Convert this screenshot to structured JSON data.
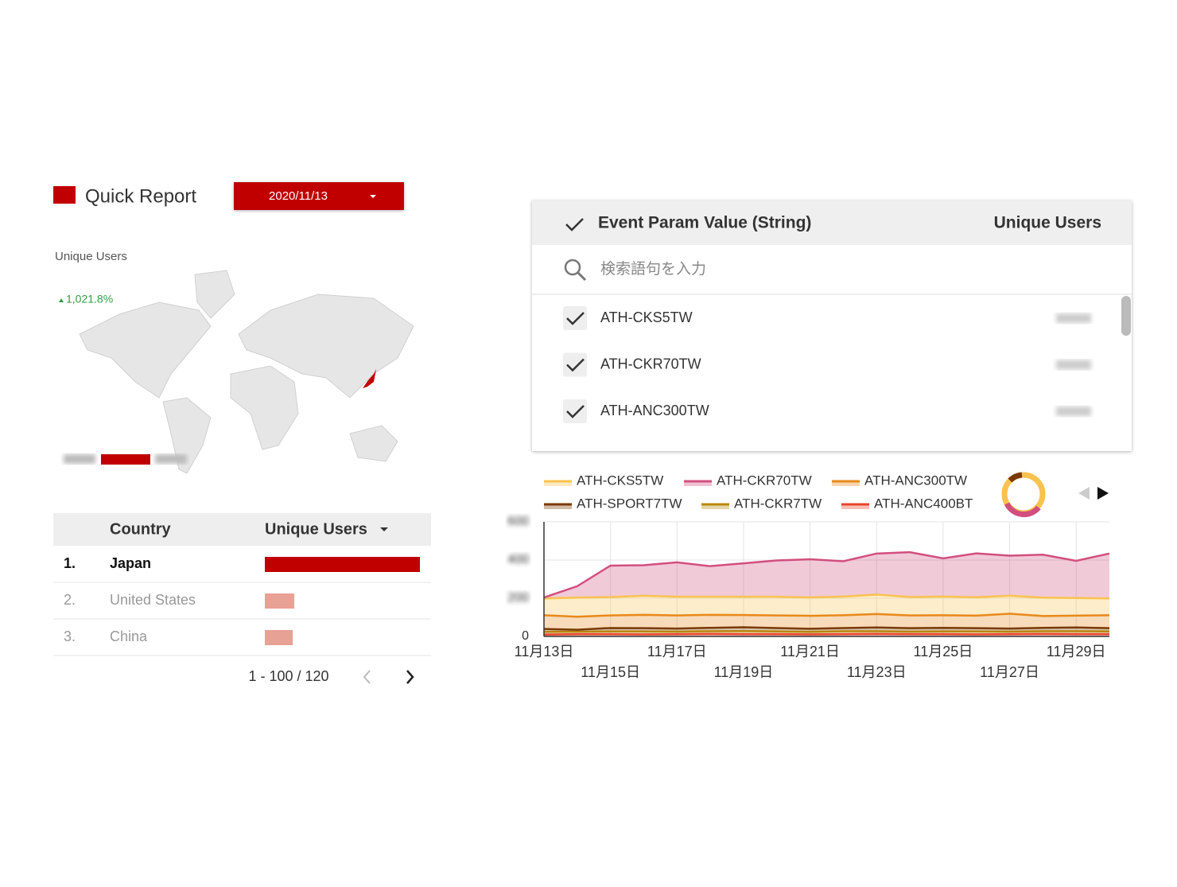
{
  "header": {
    "title": "Quick Report",
    "date": "2020/11/13"
  },
  "map": {
    "label": "Unique Users",
    "change": "1,021.8%"
  },
  "country_table": {
    "columns": [
      "Country",
      "Unique Users"
    ],
    "rows": [
      {
        "rank": "1.",
        "country": "Japan",
        "value": 100
      },
      {
        "rank": "2.",
        "country": "United States",
        "value": 19
      },
      {
        "rank": "3.",
        "country": "China",
        "value": 18
      }
    ],
    "pagination": "1 - 100 / 120"
  },
  "filter": {
    "columns": [
      "Event Param Value (String)",
      "Unique Users"
    ],
    "search_placeholder": "検索語句を入力",
    "items": [
      "ATH-CKS5TW",
      "ATH-CKR70TW",
      "ATH-ANC300TW"
    ]
  },
  "chart_data": {
    "type": "area",
    "stacked": true,
    "x": [
      "11月13日",
      null,
      "11月15日",
      null,
      "11月17日",
      null,
      "11月19日",
      null,
      "11月21日",
      null,
      "11月23日",
      null,
      "11月25日",
      null,
      "11月27日",
      null,
      "11月29日",
      null
    ],
    "series": [
      {
        "name": "ATH-CKS5TW",
        "color": "#f9c24f",
        "values": [
          88,
          100,
          96,
          100,
          98,
          95,
          96,
          98,
          96,
          98,
          102,
          96,
          98,
          96,
          94,
          96,
          92,
          88
        ]
      },
      {
        "name": "ATH-CKR70TW",
        "color": "#d24f7d",
        "values": [
          5,
          60,
          165,
          160,
          180,
          160,
          175,
          190,
          200,
          185,
          215,
          235,
          200,
          230,
          210,
          225,
          195,
          235
        ]
      },
      {
        "name": "ATH-ANC300TW",
        "color": "#e8891a",
        "values": [
          72,
          68,
          66,
          70,
          69,
          68,
          64,
          66,
          68,
          67,
          70,
          67,
          66,
          66,
          78,
          62,
          62,
          68
        ]
      },
      {
        "name": "ATH-SPORT7TW",
        "color": "#7a3a00",
        "values": [
          15,
          10,
          18,
          17,
          16,
          18,
          20,
          18,
          16,
          17,
          20,
          18,
          19,
          17,
          16,
          18,
          20,
          17
        ]
      },
      {
        "name": "ATH-CKR7TW",
        "color": "#b8860b",
        "values": [
          14,
          13,
          14,
          15,
          13,
          14,
          16,
          14,
          13,
          15,
          14,
          13,
          14,
          15,
          13,
          14,
          15,
          14
        ]
      },
      {
        "name": "ATH-ANC400BT",
        "color": "#e8452c",
        "values": [
          10,
          12,
          12,
          11,
          12,
          13,
          12,
          12,
          11,
          12,
          13,
          12,
          12,
          11,
          12,
          13,
          12,
          12
        ]
      }
    ],
    "ylim": [
      0,
      600
    ],
    "yticks": [
      0,
      200,
      400,
      600
    ],
    "grid": true
  }
}
